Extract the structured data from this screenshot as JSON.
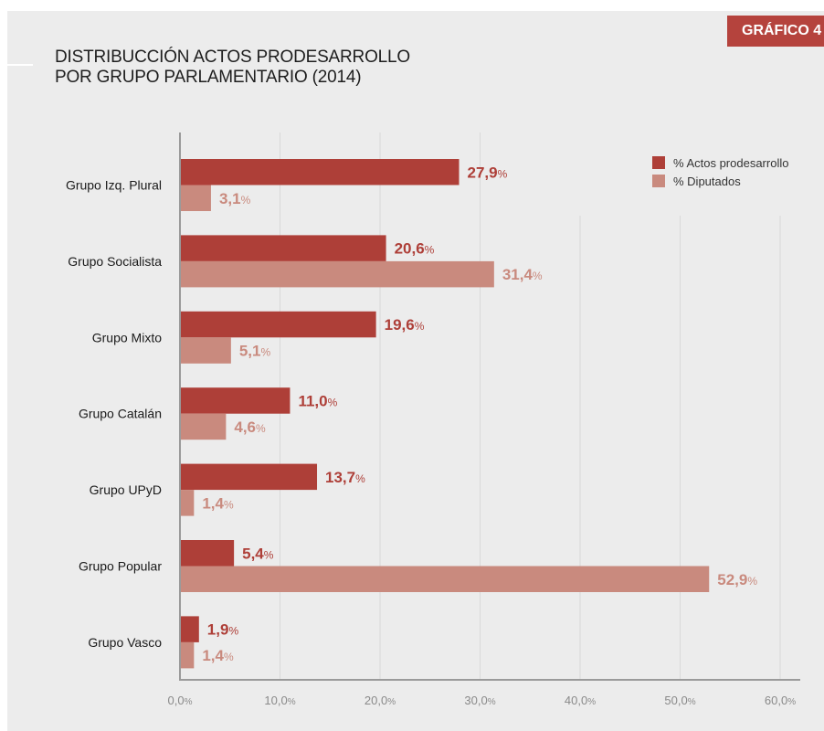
{
  "badge": "GRÁFICO 4",
  "title_lines": [
    "DISTRIBUCCIÓN ACTOS PRODESARROLLO",
    "POR GRUPO PARLAMENTARIO (2014)"
  ],
  "colors": {
    "actos": "#ae3f38",
    "diputados": "#c98a7e",
    "background": "#ececec",
    "badge": "#b5433d"
  },
  "chart_data": {
    "type": "bar",
    "orientation": "horizontal",
    "title": "DISTRIBUCCIÓN ACTOS PRODESARROLLO POR GRUPO PARLAMENTARIO (2014)",
    "categories": [
      "Grupo Izq. Plural",
      "Grupo Socialista",
      "Grupo Mixto",
      "Grupo Catalán",
      "Grupo UPyD",
      "Grupo Popular",
      "Grupo Vasco"
    ],
    "series": [
      {
        "name": "% Actos prodesarrollo",
        "values": [
          27.9,
          20.6,
          19.6,
          11.0,
          13.7,
          5.4,
          1.9
        ],
        "labels": [
          "27,9",
          "20,6",
          "19,6",
          "11,0",
          "13,7",
          "5,4",
          "1,9"
        ]
      },
      {
        "name": "% Diputados",
        "values": [
          3.1,
          31.4,
          5.1,
          4.6,
          1.4,
          52.9,
          1.4
        ],
        "labels": [
          "3,1",
          "31,4",
          "5,1",
          "4,6",
          "1,4",
          "52,9",
          "1,4"
        ]
      }
    ],
    "xlim": [
      0,
      60
    ],
    "xticks": [
      0,
      10,
      20,
      30,
      40,
      50,
      60
    ],
    "xtick_labels": [
      "0,0",
      "10,0",
      "20,0",
      "30,0",
      "40,0",
      "50,0",
      "60,0"
    ],
    "unit": "%",
    "grid": true,
    "legend_position": "top-right"
  }
}
